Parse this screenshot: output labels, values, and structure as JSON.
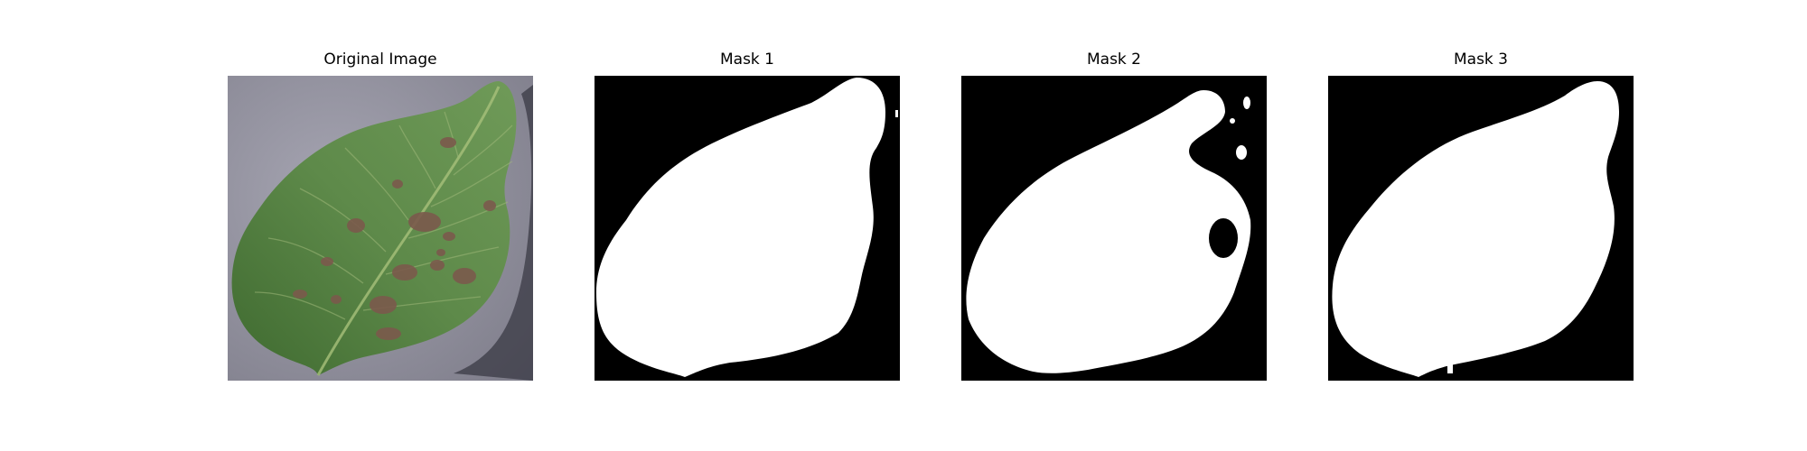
{
  "figure": {
    "panels": [
      {
        "title": "Original Image",
        "kind": "photo",
        "subject": "leaf-photo"
      },
      {
        "title": "Mask 1",
        "kind": "mask",
        "subject": "segmentation-mask"
      },
      {
        "title": "Mask 2",
        "kind": "mask",
        "subject": "segmentation-mask"
      },
      {
        "title": "Mask 3",
        "kind": "mask",
        "subject": "segmentation-mask"
      }
    ]
  },
  "colors": {
    "background": "#ffffff",
    "mask_background": "#000000",
    "mask_foreground": "#ffffff",
    "leaf_green": "#4f7a3c",
    "leaf_spot": "#7a5a4a",
    "photo_background": "#8f8e9a"
  }
}
